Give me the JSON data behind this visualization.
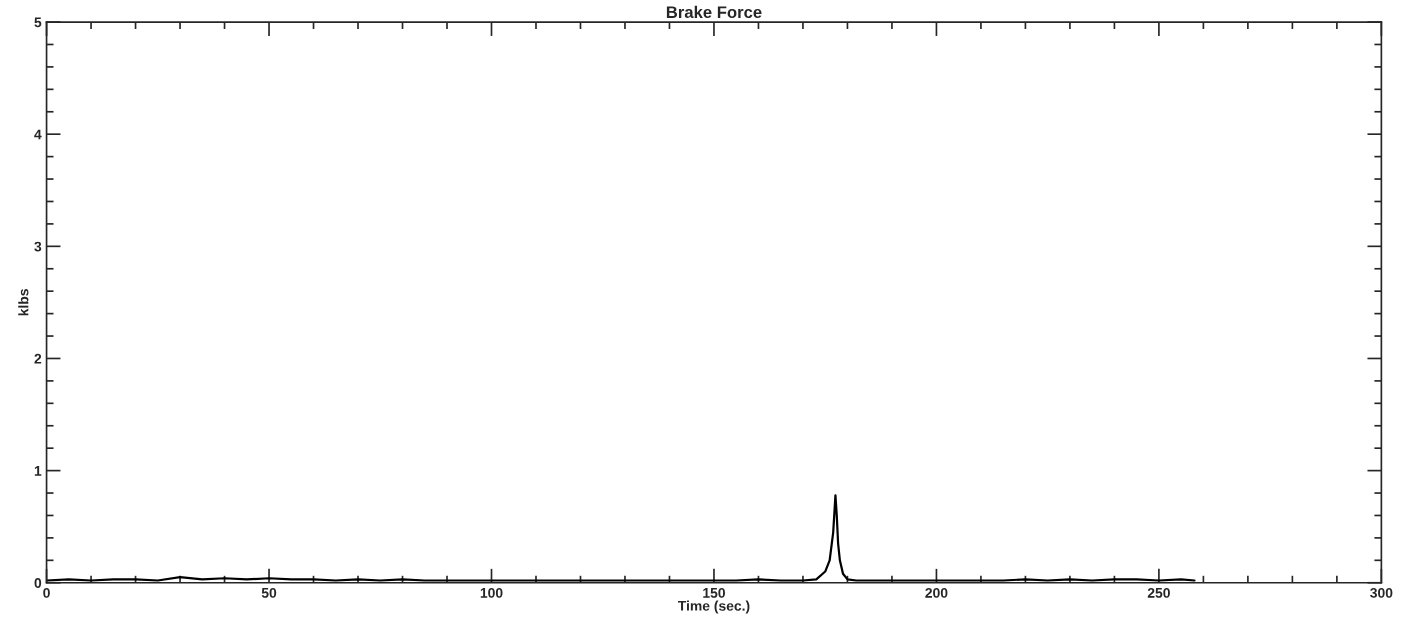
{
  "chart_data": {
    "type": "line",
    "title": "Brake Force",
    "xlabel": "Time (sec.)",
    "ylabel": "klbs",
    "xlim": [
      0,
      300
    ],
    "xticks": [
      0,
      50,
      100,
      150,
      200,
      250,
      300
    ],
    "ylim": [
      0,
      5
    ],
    "yticks": [
      0,
      1,
      2,
      3,
      4,
      5
    ],
    "grid": false,
    "legend": false,
    "series": [
      {
        "color": "#000000",
        "x": [
          0,
          5,
          10,
          15,
          20,
          25,
          30,
          35,
          40,
          45,
          50,
          55,
          60,
          65,
          70,
          75,
          80,
          85,
          90,
          95,
          100,
          105,
          110,
          115,
          120,
          125,
          130,
          135,
          140,
          145,
          150,
          155,
          160,
          165,
          170,
          173,
          175,
          176,
          176.8,
          177.3,
          177.6,
          177.9,
          178.3,
          179,
          180,
          182,
          185,
          190,
          195,
          200,
          205,
          210,
          215,
          220,
          225,
          230,
          235,
          240,
          245,
          250,
          255,
          258
        ],
        "values": [
          0.02,
          0.03,
          0.02,
          0.03,
          0.03,
          0.02,
          0.05,
          0.03,
          0.04,
          0.03,
          0.04,
          0.03,
          0.03,
          0.02,
          0.03,
          0.02,
          0.03,
          0.02,
          0.02,
          0.02,
          0.02,
          0.02,
          0.02,
          0.02,
          0.02,
          0.02,
          0.02,
          0.02,
          0.02,
          0.02,
          0.02,
          0.02,
          0.03,
          0.02,
          0.02,
          0.03,
          0.1,
          0.2,
          0.45,
          0.78,
          0.6,
          0.35,
          0.2,
          0.08,
          0.03,
          0.02,
          0.02,
          0.02,
          0.02,
          0.02,
          0.02,
          0.02,
          0.02,
          0.03,
          0.02,
          0.03,
          0.02,
          0.03,
          0.03,
          0.02,
          0.03,
          0.02
        ]
      }
    ]
  }
}
